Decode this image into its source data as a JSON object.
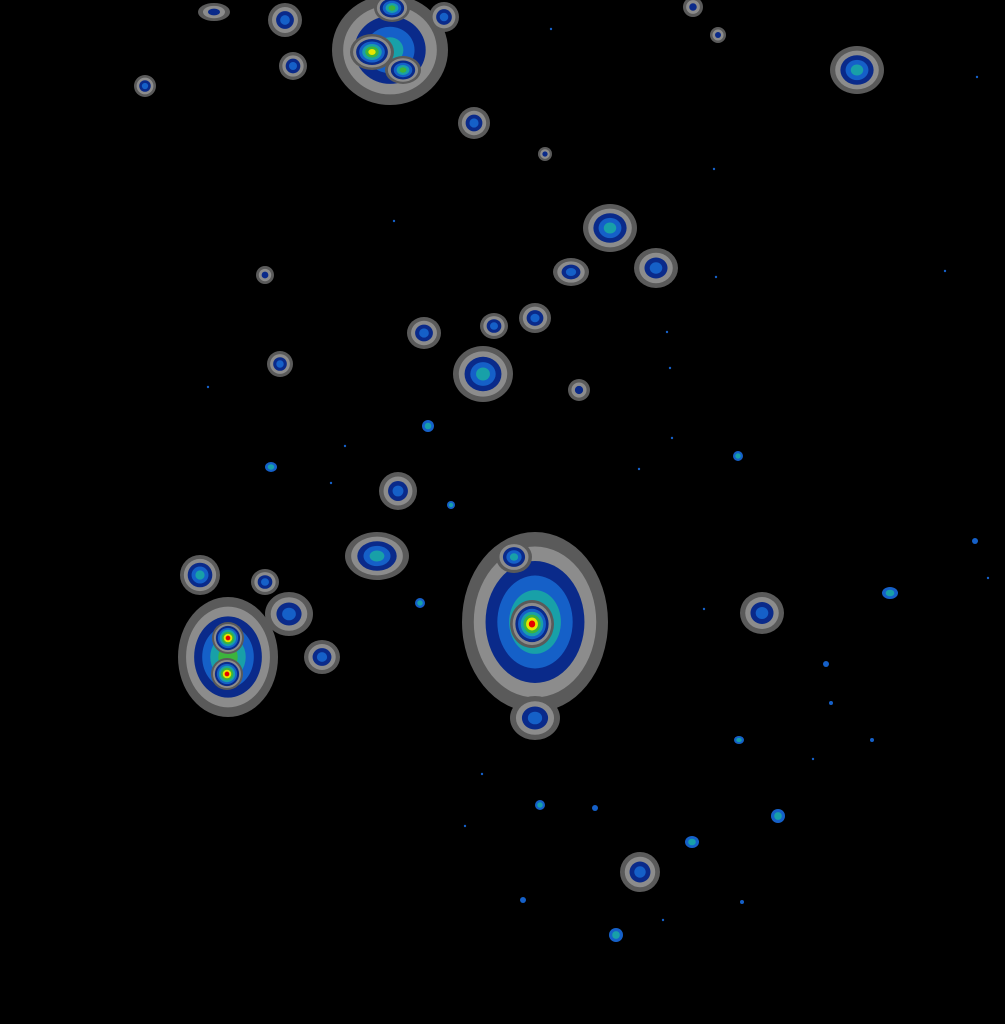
{
  "image": {
    "kind": "false-color contour density map of point sources on black background",
    "background": "#000000",
    "palette": {
      "halo_outer": "#5a5a5a",
      "halo_inner": "#8c8c8c",
      "level_1": "#0a2a8a",
      "level_2": "#1560c8",
      "level_3": "#18a0a8",
      "level_4": "#3cb43c",
      "level_5": "#e6e600",
      "level_6": "#e60000"
    }
  }
}
